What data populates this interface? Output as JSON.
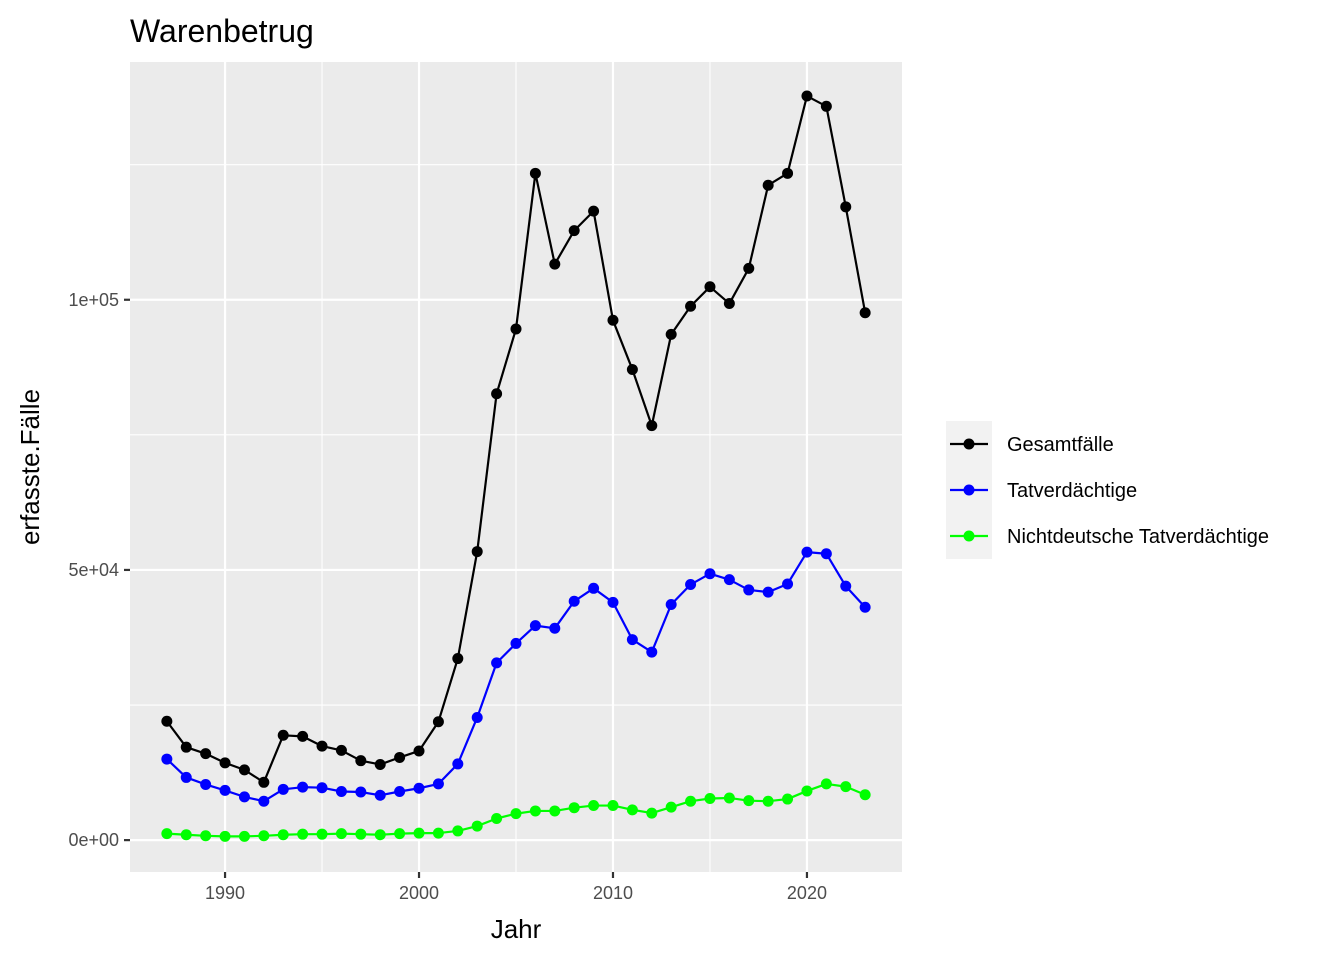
{
  "chart_data": {
    "type": "line",
    "title": "Warenbetrug",
    "xlabel": "Jahr",
    "ylabel": "erfasste.Fälle",
    "xlim": [
      1985.1,
      2024.9
    ],
    "ylim": [
      -5900,
      144000
    ],
    "x_ticks": [
      1990,
      2000,
      2010,
      2020
    ],
    "x_tick_labels": [
      "1990",
      "2000",
      "2010",
      "2020"
    ],
    "y_ticks": [
      0,
      50000,
      100000
    ],
    "y_tick_labels": [
      "0e+00",
      "5e+04",
      "1e+05"
    ],
    "grid": true,
    "legend_position": "right",
    "x": [
      1987,
      1988,
      1989,
      1990,
      1991,
      1992,
      1993,
      1994,
      1995,
      1996,
      1997,
      1998,
      1999,
      2000,
      2001,
      2002,
      2003,
      2004,
      2005,
      2006,
      2007,
      2008,
      2009,
      2010,
      2011,
      2012,
      2013,
      2014,
      2015,
      2016,
      2017,
      2018,
      2019,
      2020,
      2021,
      2022,
      2023
    ],
    "series": [
      {
        "name": "Gesamtfälle",
        "color": "#000000",
        "values": [
          22000,
          17200,
          16000,
          14300,
          13000,
          10700,
          19400,
          19200,
          17400,
          16600,
          14700,
          14000,
          15300,
          16500,
          21900,
          33600,
          53400,
          82600,
          94600,
          123400,
          106600,
          112800,
          116400,
          96200,
          87100,
          76700,
          93600,
          98800,
          102400,
          99300,
          105800,
          121200,
          123400,
          137700,
          135800,
          117200,
          97600
        ]
      },
      {
        "name": "Tatverdächtige",
        "color": "#0000ff",
        "values": [
          15000,
          11600,
          10300,
          9200,
          8000,
          7200,
          9400,
          9800,
          9700,
          9000,
          8900,
          8300,
          9000,
          9600,
          10400,
          14100,
          22700,
          32800,
          36400,
          39700,
          39200,
          44200,
          46600,
          44000,
          37100,
          34800,
          43600,
          47300,
          49300,
          48200,
          46300,
          45900,
          47400,
          53300,
          53000,
          47000,
          43100
        ]
      },
      {
        "name": "Nichtdeutsche Tatverdächtige",
        "color": "#00ff00",
        "values": [
          1200,
          1000,
          800,
          700,
          700,
          800,
          1000,
          1100,
          1100,
          1200,
          1100,
          1000,
          1200,
          1300,
          1300,
          1700,
          2600,
          4000,
          4900,
          5400,
          5400,
          6000,
          6400,
          6400,
          5600,
          5000,
          6100,
          7200,
          7700,
          7800,
          7300,
          7200,
          7600,
          9100,
          10400,
          9900,
          8400
        ]
      }
    ]
  }
}
